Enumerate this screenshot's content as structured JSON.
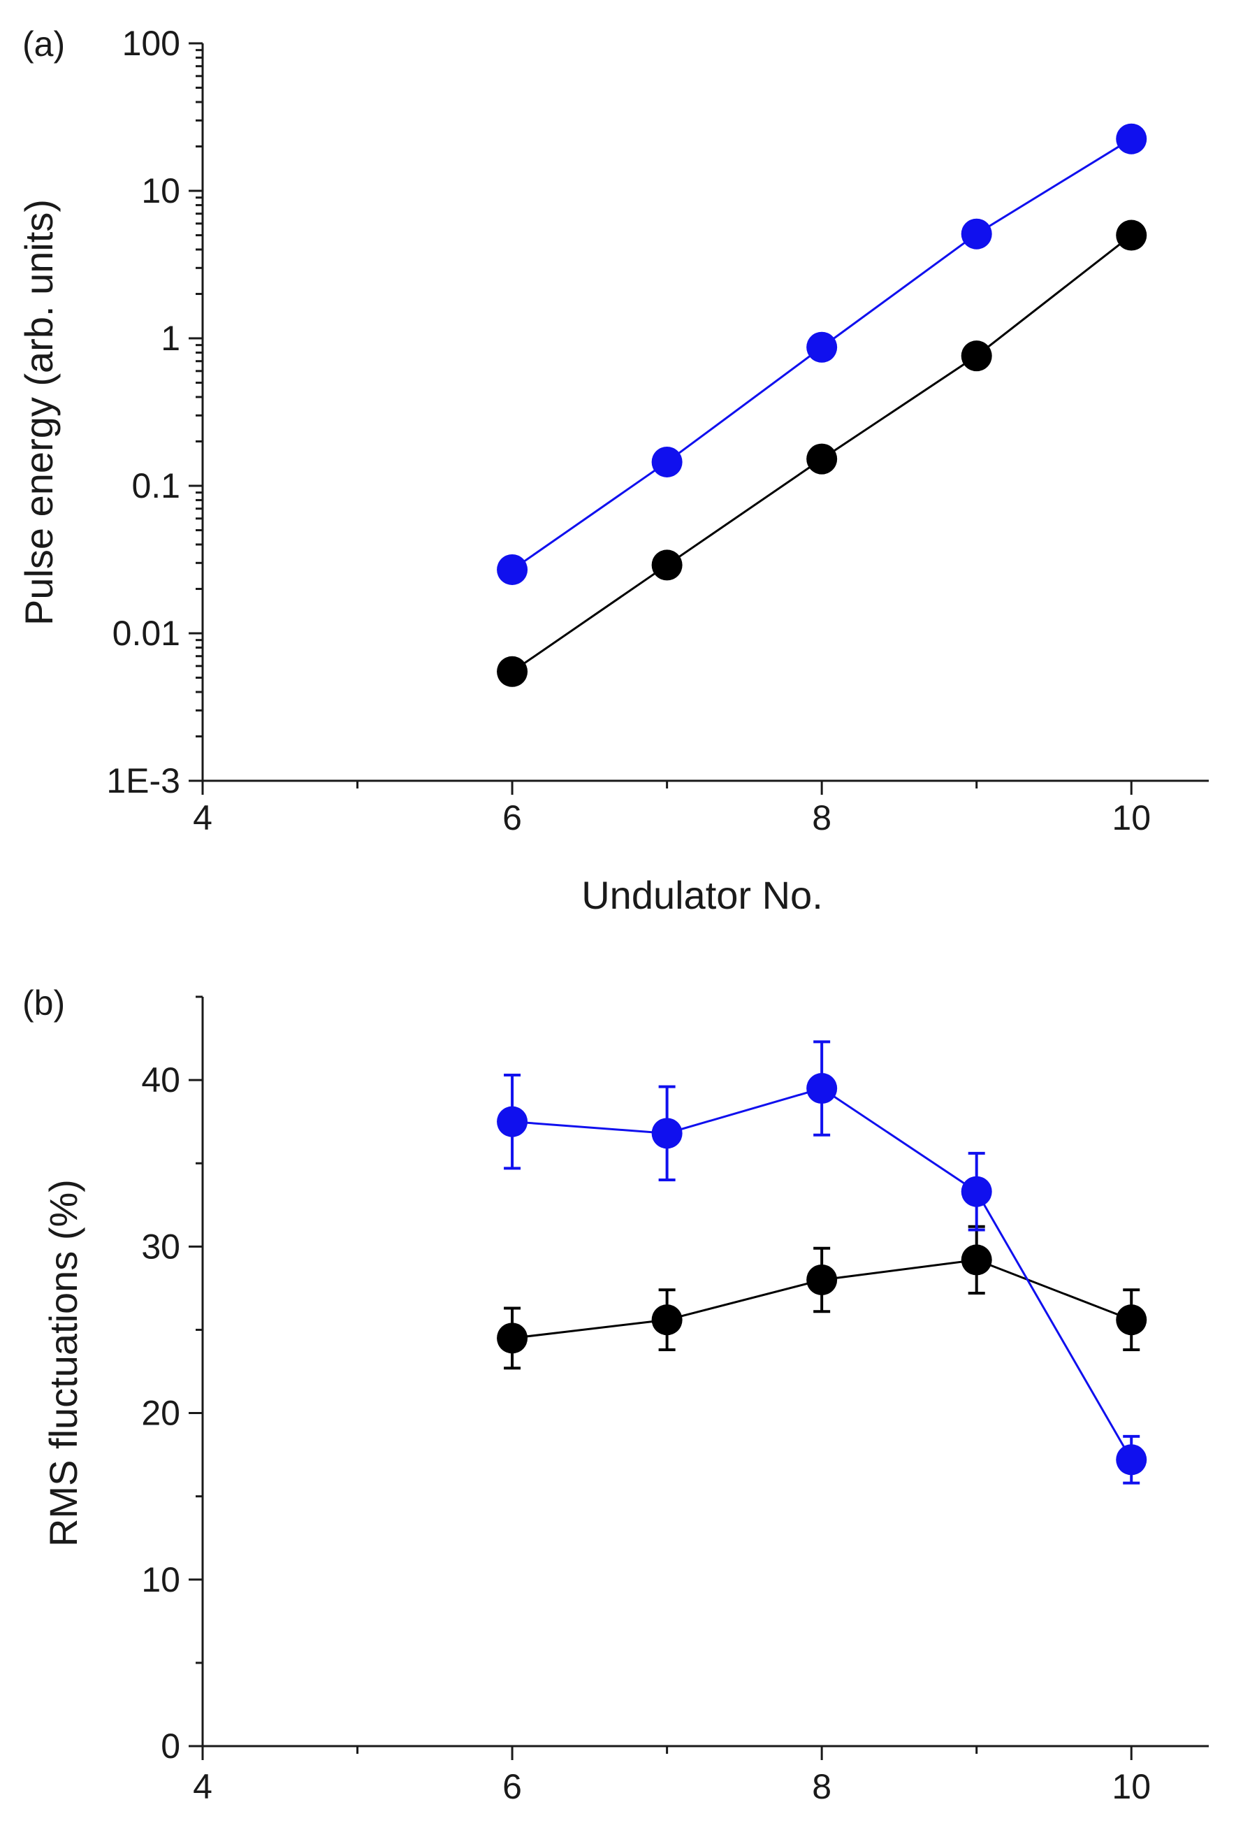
{
  "chart_data": [
    {
      "panel_label": "(a)",
      "type": "line",
      "yscale": "log",
      "xlabel": "Undulator No.",
      "ylabel": "Pulse energy (arb. units)",
      "xlim": [
        4,
        10.5
      ],
      "ylim": [
        0.001,
        100
      ],
      "xticks": [
        4,
        6,
        8,
        10
      ],
      "xtick_labels": [
        "4",
        "6",
        "8",
        "10"
      ],
      "yticks": [
        0.001,
        0.01,
        0.1,
        1,
        10,
        100
      ],
      "ytick_labels": [
        "1E-3",
        "0.01",
        "0.1",
        "1",
        "10",
        "100"
      ],
      "series": [
        {
          "name": "blue",
          "color": "#1010ee",
          "x": [
            6,
            7,
            8,
            9,
            10
          ],
          "values": [
            0.027,
            0.145,
            0.87,
            5.1,
            22.5
          ]
        },
        {
          "name": "black",
          "color": "#000000",
          "x": [
            6,
            7,
            8,
            9,
            10
          ],
          "values": [
            0.0055,
            0.029,
            0.152,
            0.76,
            5.0
          ]
        }
      ]
    },
    {
      "panel_label": "(b)",
      "type": "line",
      "yscale": "linear",
      "xlabel": "",
      "ylabel": "RMS fluctuations (%)",
      "xlim": [
        4,
        10.5
      ],
      "ylim": [
        0,
        45
      ],
      "xticks": [
        4,
        6,
        8,
        10
      ],
      "xtick_labels": [
        "4",
        "6",
        "8",
        "10"
      ],
      "yticks": [
        0,
        10,
        20,
        30,
        40
      ],
      "ytick_labels": [
        "0",
        "10",
        "20",
        "30",
        "40"
      ],
      "series": [
        {
          "name": "blue",
          "color": "#1010ee",
          "x": [
            6,
            7,
            8,
            9,
            10
          ],
          "values": [
            37.5,
            36.8,
            39.5,
            33.3,
            17.2
          ],
          "errors": [
            2.8,
            2.8,
            2.8,
            2.3,
            1.4
          ]
        },
        {
          "name": "black",
          "color": "#000000",
          "x": [
            6,
            7,
            8,
            9,
            10
          ],
          "values": [
            24.5,
            25.6,
            28.0,
            29.2,
            25.6
          ],
          "errors": [
            1.8,
            1.8,
            1.9,
            2.0,
            1.8
          ]
        }
      ]
    }
  ]
}
